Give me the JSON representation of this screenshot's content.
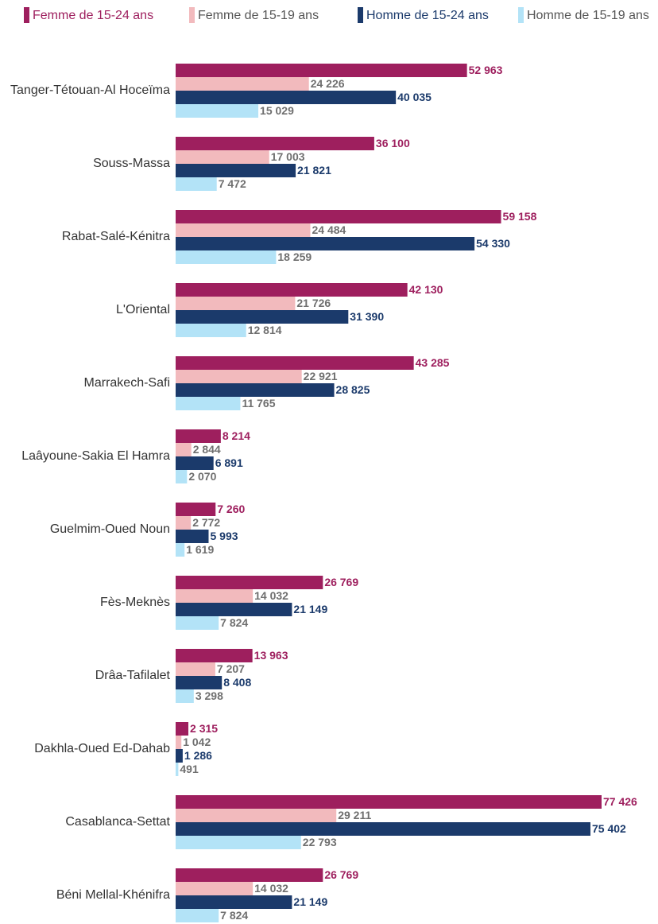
{
  "chart_data": {
    "type": "bar",
    "orientation": "horizontal",
    "categories": [
      "Tanger-Tétouan-Al Hoceïma",
      "Souss-Massa",
      "Rabat-Salé-Kénitra",
      "L'Oriental",
      "Marrakech-Safi",
      "Laâyoune-Sakia El Hamra",
      "Guelmim-Oued Noun",
      "Fès-Meknès",
      "Drâa-Tafilalet",
      "Dakhla-Oued Ed-Dahab",
      "Casablanca-Settat",
      "Béni Mellal-Khénifra"
    ],
    "series": [
      {
        "name": "Femme de 15-24 ans",
        "color": "#9e1f5e",
        "label_color": "#9e1f5e",
        "values": [
          52963,
          36100,
          59158,
          42130,
          43285,
          8214,
          7260,
          26769,
          13963,
          2315,
          77426,
          26769
        ],
        "value_labels": [
          "52 963",
          "36 100",
          "59 158",
          "42 130",
          "43 285",
          "8 214",
          "7 260",
          "26 769",
          "13 963",
          "2 315",
          "77 426",
          "26 769"
        ]
      },
      {
        "name": "Femme de 15-19 ans",
        "color": "#f2babd",
        "label_color": "#6f6f6f",
        "values": [
          24226,
          17003,
          24484,
          21726,
          22921,
          2844,
          2772,
          14032,
          7207,
          1042,
          29211,
          14032
        ],
        "value_labels": [
          "24 226",
          "17 003",
          "24 484",
          "21 726",
          "22 921",
          "2 844",
          "2 772",
          "14 032",
          "7 207",
          "1 042",
          "29 211",
          "14 032"
        ]
      },
      {
        "name": "Homme de 15-24 ans",
        "color": "#1b3a6b",
        "label_color": "#1b3a6b",
        "values": [
          40035,
          21821,
          54330,
          31390,
          28825,
          6891,
          5993,
          21149,
          8408,
          1286,
          75402,
          21149
        ],
        "value_labels": [
          "40 035",
          "21 821",
          "54 330",
          "31 390",
          "28 825",
          "6 891",
          "5 993",
          "21 149",
          "8 408",
          "1 286",
          "75 402",
          "21 149"
        ]
      },
      {
        "name": "Homme de 15-19 ans",
        "color": "#b3e3f7",
        "label_color": "#6f6f6f",
        "values": [
          15029,
          7472,
          18259,
          12814,
          11765,
          2070,
          1619,
          7824,
          3298,
          491,
          22793,
          7824
        ],
        "value_labels": [
          "15 029",
          "7 472",
          "18 259",
          "12 814",
          "11 765",
          "2 070",
          "1 619",
          "7 824",
          "3 298",
          "491",
          "22 793",
          "7 824"
        ]
      }
    ],
    "legend": "top"
  }
}
